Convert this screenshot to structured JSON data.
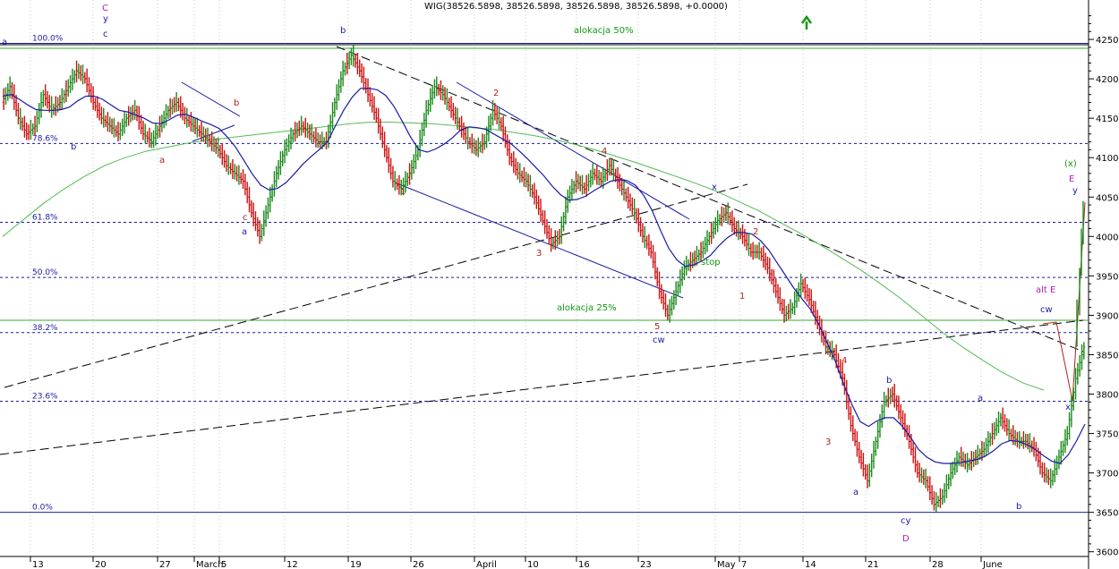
{
  "chart_data": {
    "type": "line",
    "title": "WIG(38526.5898, 38526.5898, 38526.5898, 38526.5898, +0.0000)",
    "x_tick_labels": [
      "13",
      "20",
      "27",
      "March",
      "5",
      "12",
      "19",
      "26",
      "April",
      "10",
      "16",
      "23",
      "May",
      "7",
      "14",
      "21",
      "28",
      "June"
    ],
    "y_ticks": [
      36000,
      36500,
      37000,
      37500,
      38000,
      38500,
      39000,
      39500,
      40000,
      40500,
      41000,
      41500,
      42000,
      42500
    ],
    "ylim": [
      35940,
      43000
    ],
    "grid": true,
    "series": [
      {
        "values": [
          41700,
          41900,
          41500,
          41300,
          41400,
          41800,
          41600,
          41700,
          41900,
          42100,
          42000,
          41700,
          41500,
          41400,
          41300,
          41500,
          41600,
          41300,
          41200,
          41400,
          41600,
          41700,
          41500,
          41400,
          41300,
          41200,
          41100,
          40900,
          40800,
          40700,
          40300,
          40000,
          40400,
          40800,
          41100,
          41300,
          41400,
          41300,
          41200,
          41200,
          41700,
          42100,
          42300,
          42100,
          41800,
          41500,
          41100,
          40700,
          40600,
          40800,
          41100,
          41600,
          41900,
          41800,
          41600,
          41400,
          41200,
          41100,
          41200,
          41600,
          41400,
          41000,
          40800,
          40700,
          40500,
          40200,
          39900,
          40000,
          40500,
          40700,
          40600,
          40800,
          40700,
          40900,
          40700,
          40500,
          40300,
          40000,
          39800,
          39300,
          39000,
          39300,
          39600,
          39700,
          39800,
          40000,
          40200,
          40300,
          40100,
          40000,
          39800,
          39800,
          39600,
          39300,
          39000,
          39100,
          39400,
          39200,
          38900,
          38600,
          38500,
          38200,
          37600,
          37200,
          36900,
          37400,
          37900,
          38000,
          37700,
          37400,
          37000,
          36900,
          36600,
          36700,
          37000,
          37200,
          37100,
          37200,
          37300,
          37500,
          37700,
          37500,
          37400,
          37400,
          37300,
          37000,
          36900,
          37200,
          37500,
          38200,
          38600
        ]
      },
      {
        "values": [
          41780,
          41800,
          41740,
          41670,
          41610,
          41600,
          41600,
          41610,
          41640,
          41720,
          41780,
          41780,
          41740,
          41670,
          41600,
          41580,
          41540,
          41500,
          41440,
          41430,
          41480,
          41540,
          41550,
          41510,
          41460,
          41420,
          41370,
          41260,
          41130,
          40960,
          40790,
          40650,
          40590,
          40610,
          40680,
          40790,
          40910,
          41010,
          41100,
          41200,
          41410,
          41610,
          41770,
          41880,
          41880,
          41860,
          41790,
          41650,
          41460,
          41260,
          41100,
          41070,
          41110,
          41170,
          41250,
          41350,
          41390,
          41380,
          41360,
          41300,
          41240,
          41180,
          41090,
          40990,
          40880,
          40770,
          40640,
          40530,
          40460,
          40470,
          40510,
          40580,
          40640,
          40700,
          40720,
          40710,
          40650,
          40520,
          40330,
          40080,
          39850,
          39700,
          39620,
          39640,
          39690,
          39760,
          39880,
          39980,
          40050,
          40050,
          40030,
          39950,
          39830,
          39670,
          39510,
          39350,
          39210,
          39080,
          38890,
          38660,
          38420,
          38130,
          37870,
          37650,
          37590,
          37660,
          37700,
          37700,
          37600,
          37460,
          37300,
          37200,
          37140,
          37120,
          37120,
          37130,
          37150,
          37170,
          37210,
          37280,
          37370,
          37410,
          37400,
          37360,
          37300,
          37220,
          37150,
          37120,
          37230,
          37410,
          37620
        ]
      },
      {
        "values": [
          40000,
          40210,
          40420,
          40600,
          40760,
          40900,
          41000,
          41080,
          41130,
          41180,
          41220,
          41250,
          41280,
          41310,
          41340,
          41370,
          41400,
          41430,
          41450,
          41450,
          41440,
          41430,
          41410,
          41380,
          41360,
          41320,
          41280,
          41230,
          41170,
          41100,
          41020,
          40940,
          40850,
          40760,
          40670,
          40570,
          40450,
          40330,
          40190,
          40050,
          39900,
          39740,
          39580,
          39400,
          39210,
          39000,
          38790,
          38600,
          38430,
          38270,
          38140,
          38050
        ]
      }
    ]
  },
  "wave_labels": [
    {
      "text": "a",
      "color": "#1a1aa6"
    },
    {
      "text": "C",
      "color": "#b020b0"
    },
    {
      "text": "y",
      "color": "#1a1aa6"
    },
    {
      "text": "c",
      "color": "#1a1aa6"
    },
    {
      "text": "b",
      "color": "#1a1aa6"
    },
    {
      "text": "a",
      "color": "#b02020"
    },
    {
      "text": "b",
      "color": "#b02020"
    },
    {
      "text": "c",
      "color": "#b02020"
    },
    {
      "text": "a",
      "color": "#1a1aa6"
    },
    {
      "text": "b",
      "color": "#1a1aa6"
    },
    {
      "text": "1",
      "color": "#b02020"
    },
    {
      "text": "2",
      "color": "#b02020"
    },
    {
      "text": "3",
      "color": "#b02020"
    },
    {
      "text": "4",
      "color": "#b02020"
    },
    {
      "text": "5",
      "color": "#b02020"
    },
    {
      "text": "cw",
      "color": "#1a1aa6"
    },
    {
      "text": "x",
      "color": "#1a1aa6"
    },
    {
      "text": "1",
      "color": "#b02020"
    },
    {
      "text": "2",
      "color": "#b02020"
    },
    {
      "text": "3",
      "color": "#b02020"
    },
    {
      "text": "4",
      "color": "#b02020"
    },
    {
      "text": "a",
      "color": "#1a1aa6"
    },
    {
      "text": "b",
      "color": "#1a1aa6"
    },
    {
      "text": "cy",
      "color": "#1a1aa6"
    },
    {
      "text": "D",
      "color": "#b020b0"
    },
    {
      "text": "a",
      "color": "#1a1aa6"
    },
    {
      "text": "b",
      "color": "#1a1aa6"
    },
    {
      "text": "alt E",
      "color": "#b020b0"
    },
    {
      "text": "cw",
      "color": "#1a1aa6"
    },
    {
      "text": "x",
      "color": "#1a1aa6"
    },
    {
      "text": "(x)",
      "color": "#119911"
    },
    {
      "text": "E",
      "color": "#b020b0"
    },
    {
      "text": "y",
      "color": "#1a1aa6"
    }
  ],
  "fib_levels": [
    {
      "label": "100.0%",
      "value": 42450
    },
    {
      "label": "78.6%",
      "value": 41180
    },
    {
      "label": "61.8%",
      "value": 40180
    },
    {
      "label": "50.0%",
      "value": 39480
    },
    {
      "label": "38.2%",
      "value": 38780
    },
    {
      "label": "23.6%",
      "value": 37910
    },
    {
      "label": "0.0%",
      "value": 36500
    }
  ],
  "notes": {
    "alloc50": "alokacja 50%",
    "alloc25": "alokacja 25%",
    "stop": "stop"
  },
  "colors": {
    "price": "#1a8a1a",
    "down_bar": "#cc1111",
    "ma_short": "#1a1aa6",
    "ma_long": "#55bb55",
    "fib": "#1a1aa6",
    "alloc_line": "#33aa33",
    "trend": "#000000",
    "arrow": "#119911"
  },
  "icons": {
    "alloc_arrow": "up-arrow-icon"
  }
}
